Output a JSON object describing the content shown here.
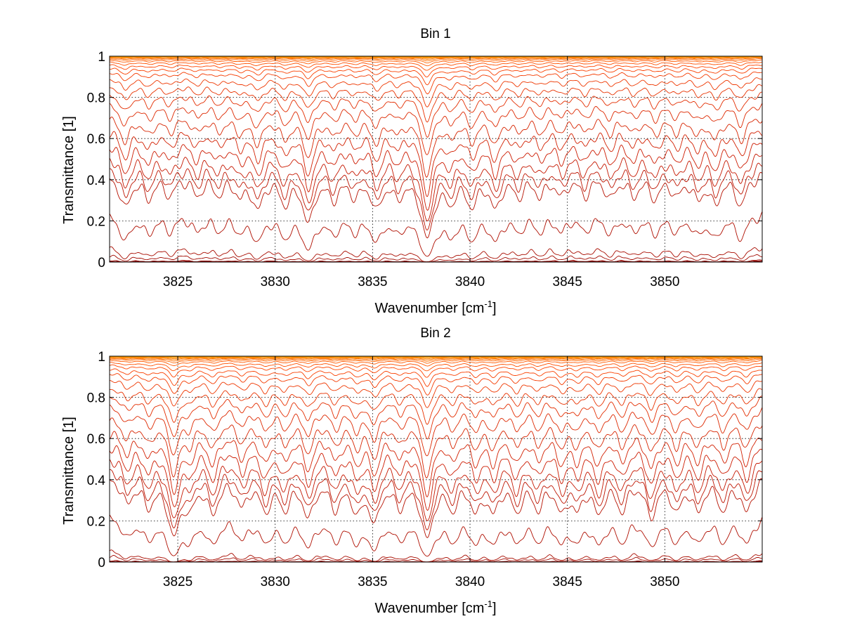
{
  "figure": {
    "background": "#ffffff"
  },
  "chart_data": [
    {
      "type": "line",
      "title": "Bin 1",
      "xlabel": "Wavenumber [cm",
      "xlabel_sup": "-1",
      "xlabel_end": "]",
      "ylabel": "Transmittance [1]",
      "xlim": [
        3821.5,
        3855.0
      ],
      "ylim": [
        0,
        1
      ],
      "xticks": [
        3825,
        3830,
        3835,
        3840,
        3845,
        3850
      ],
      "xtick_labels": [
        "3825",
        "3830",
        "3835",
        "3840",
        "3845",
        "3850"
      ],
      "yticks": [
        0,
        0.2,
        0.4,
        0.6,
        0.8,
        1
      ],
      "ytick_labels": [
        "0",
        "0.2",
        "0.4",
        "0.6",
        "0.8",
        "1"
      ],
      "grid": "dotted",
      "line_colors": [
        "#8b0000",
        "#cc1a00",
        "#ff4500",
        "#ffa500"
      ],
      "baselines": [
        0.003,
        0.007,
        0.012,
        0.04,
        0.08,
        0.24,
        0.43,
        0.48,
        0.53,
        0.59,
        0.65,
        0.71,
        0.77,
        0.82,
        0.86,
        0.895,
        0.925,
        0.945,
        0.96,
        0.972,
        0.981,
        0.987,
        0.991,
        0.994,
        0.996,
        0.997,
        0.998,
        0.999
      ],
      "lines": [
        3822.3,
        3823.5,
        3824.6,
        3826.0,
        3827.1,
        3828.2,
        3829.1,
        3830.5,
        3831.7,
        3833.0,
        3834.1,
        3835.2,
        3836.3,
        3837.8,
        3839.0,
        3840.1,
        3841.3,
        3842.5,
        3843.6,
        3844.7,
        3845.9,
        3847.2,
        3848.4,
        3849.5,
        3850.6,
        3851.7,
        3852.6,
        3853.9
      ],
      "depths": [
        0.55,
        0.35,
        0.3,
        0.3,
        0.28,
        0.3,
        0.55,
        0.45,
        0.9,
        0.35,
        0.3,
        0.55,
        0.3,
        1.5,
        0.4,
        0.5,
        0.55,
        0.3,
        0.3,
        0.3,
        0.3,
        0.35,
        0.3,
        0.35,
        0.3,
        0.35,
        0.45,
        0.5
      ]
    },
    {
      "type": "line",
      "title": "Bin 2",
      "xlabel": "Wavenumber [cm",
      "xlabel_sup": "-1",
      "xlabel_end": "]",
      "ylabel": "Transmittance [1]",
      "xlim": [
        3821.5,
        3855.0
      ],
      "ylim": [
        0,
        1
      ],
      "xticks": [
        3825,
        3830,
        3835,
        3840,
        3845,
        3850
      ],
      "xtick_labels": [
        "3825",
        "3830",
        "3835",
        "3840",
        "3845",
        "3850"
      ],
      "yticks": [
        0,
        0.2,
        0.4,
        0.6,
        0.8,
        1
      ],
      "ytick_labels": [
        "0",
        "0.2",
        "0.4",
        "0.6",
        "0.8",
        "1"
      ],
      "grid": "dotted",
      "line_colors": [
        "#8b0000",
        "#cc1a00",
        "#ff4500",
        "#ffa500"
      ],
      "baselines": [
        0.003,
        0.006,
        0.01,
        0.035,
        0.06,
        0.23,
        0.42,
        0.47,
        0.52,
        0.58,
        0.64,
        0.7,
        0.76,
        0.81,
        0.85,
        0.89,
        0.92,
        0.94,
        0.958,
        0.97,
        0.98,
        0.986,
        0.99,
        0.993,
        0.995,
        0.997,
        0.998,
        0.999
      ],
      "lines": [
        3822.4,
        3823.5,
        3824.8,
        3825.6,
        3826.8,
        3828.3,
        3829.5,
        3830.5,
        3831.7,
        3833.1,
        3834.2,
        3835.1,
        3836.4,
        3837.8,
        3839.1,
        3840.3,
        3841.2,
        3842.4,
        3843.5,
        3844.7,
        3845.5,
        3846.6,
        3847.8,
        3849.3,
        3850.6,
        3851.7,
        3853.0,
        3854.2
      ],
      "depths": [
        0.4,
        0.45,
        1.3,
        0.45,
        0.6,
        0.45,
        0.55,
        0.5,
        0.7,
        0.5,
        0.55,
        0.8,
        0.45,
        1.4,
        0.5,
        0.55,
        0.55,
        0.55,
        0.5,
        0.55,
        0.5,
        0.6,
        0.55,
        0.7,
        0.55,
        0.55,
        0.55,
        0.6
      ]
    }
  ]
}
